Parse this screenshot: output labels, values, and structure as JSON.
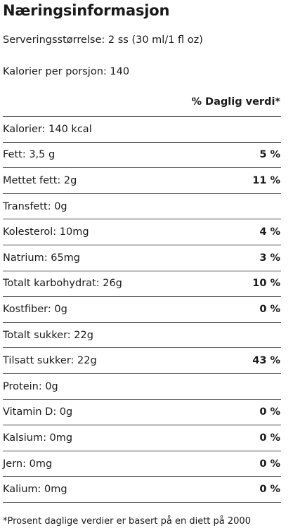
{
  "title": "Næringsinformasjon",
  "serving_size": "Serveringsstørrelse: 2 ss (30 ml/1 fl oz)",
  "calories_per_serving": "Kalorier per porsjon: 140",
  "dv_header": "% Daglig verdi*",
  "rows": [
    {
      "label": "Kalorier: 140 kcal",
      "pct": ""
    },
    {
      "label": "Fett: 3,5 g",
      "pct": "5 %"
    },
    {
      "label": "Mettet fett: 2g",
      "pct": "11 %"
    },
    {
      "label": "Transfett: 0g",
      "pct": ""
    },
    {
      "label": "Kolesterol: 10mg",
      "pct": "4 %"
    },
    {
      "label": "Natrium: 65mg",
      "pct": "3 %"
    },
    {
      "label": "Totalt karbohydrat: 26g",
      "pct": "10 %"
    },
    {
      "label": "Kostfiber: 0g",
      "pct": "0 %"
    },
    {
      "label": "Totalt sukker: 22g",
      "pct": ""
    },
    {
      "label": "Tilsatt sukker: 22g",
      "pct": "43 %"
    },
    {
      "label": "Protein: 0g",
      "pct": ""
    },
    {
      "label": "Vitamin D: 0g",
      "pct": "0 %"
    },
    {
      "label": "Kalsium: 0mg",
      "pct": "0 %"
    },
    {
      "label": "Jern: 0mg",
      "pct": "0 %"
    },
    {
      "label": "Kalium: 0mg",
      "pct": "0 %"
    }
  ],
  "footnote": "*Prosent daglige verdier er basert på en diett på 2000"
}
